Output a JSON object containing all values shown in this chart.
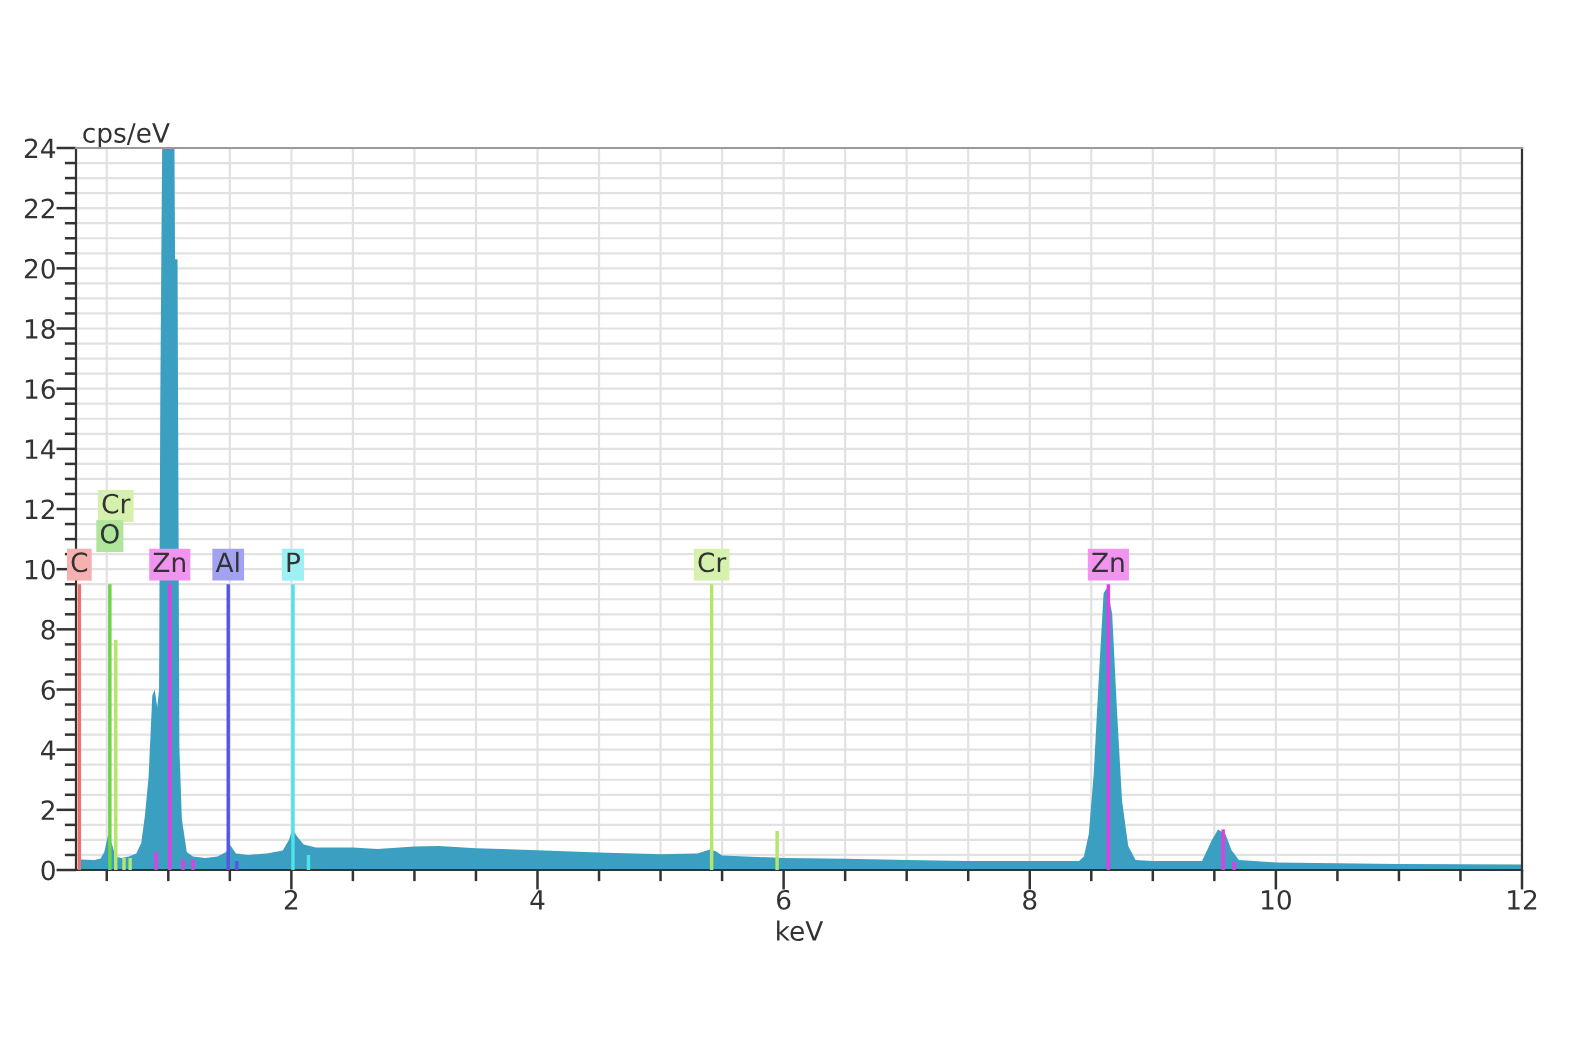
{
  "chart_data": {
    "type": "area",
    "xlabel": "keV",
    "ylabel": "cps/eV",
    "xlim": [
      0.25,
      12
    ],
    "ylim": [
      0,
      24
    ],
    "xticks": [
      {
        "value": 0.5,
        "label": null
      },
      {
        "value": 1,
        "label": null
      },
      {
        "value": 1.5,
        "label": null
      },
      2,
      {
        "value": 2.5,
        "label": null
      },
      {
        "value": 3,
        "label": null
      },
      {
        "value": 3.5,
        "label": null
      },
      4,
      {
        "value": 4.5,
        "label": null
      },
      {
        "value": 5,
        "label": null
      },
      {
        "value": 5.5,
        "label": null
      },
      6,
      {
        "value": 6.5,
        "label": null
      },
      {
        "value": 7,
        "label": null
      },
      {
        "value": 7.5,
        "label": null
      },
      8,
      {
        "value": 8.5,
        "label": null
      },
      {
        "value": 9,
        "label": null
      },
      {
        "value": 9.5,
        "label": null
      },
      10,
      {
        "value": 10.5,
        "label": null
      },
      {
        "value": 11,
        "label": null
      },
      {
        "value": 11.5,
        "label": null
      },
      12
    ],
    "yticks": [
      0,
      {
        "value": 0.5,
        "label": null
      },
      {
        "value": 1,
        "label": null
      },
      {
        "value": 1.5,
        "label": null
      },
      2,
      {
        "value": 2.5,
        "label": null
      },
      {
        "value": 3,
        "label": null
      },
      {
        "value": 3.5,
        "label": null
      },
      4,
      {
        "value": 4.5,
        "label": null
      },
      {
        "value": 5,
        "label": null
      },
      {
        "value": 5.5,
        "label": null
      },
      6,
      {
        "value": 6.5,
        "label": null
      },
      {
        "value": 7,
        "label": null
      },
      {
        "value": 7.5,
        "label": null
      },
      8,
      {
        "value": 8.5,
        "label": null
      },
      {
        "value": 9,
        "label": null
      },
      {
        "value": 9.5,
        "label": null
      },
      10,
      {
        "value": 10.5,
        "label": null
      },
      {
        "value": 11,
        "label": null
      },
      {
        "value": 11.5,
        "label": null
      },
      12,
      {
        "value": 12.5,
        "label": null
      },
      {
        "value": 13,
        "label": null
      },
      {
        "value": 13.5,
        "label": null
      },
      14,
      {
        "value": 14.5,
        "label": null
      },
      {
        "value": 15,
        "label": null
      },
      {
        "value": 15.5,
        "label": null
      },
      16,
      {
        "value": 16.5,
        "label": null
      },
      {
        "value": 17,
        "label": null
      },
      {
        "value": 17.5,
        "label": null
      },
      18,
      {
        "value": 18.5,
        "label": null
      },
      {
        "value": 19,
        "label": null
      },
      {
        "value": 19.5,
        "label": null
      },
      20,
      {
        "value": 20.5,
        "label": null
      },
      {
        "value": 21,
        "label": null
      },
      {
        "value": 21.5,
        "label": null
      },
      22,
      {
        "value": 22.5,
        "label": null
      },
      {
        "value": 23,
        "label": null
      },
      {
        "value": 23.5,
        "label": null
      },
      24
    ],
    "grid": true,
    "series": [
      {
        "color": "#3b9fc1",
        "x": [
          0.27,
          0.29,
          0.4,
          0.45,
          0.48,
          0.51,
          0.54,
          0.57,
          0.62,
          0.68,
          0.74,
          0.78,
          0.81,
          0.84,
          0.87,
          0.89,
          0.91,
          0.925,
          0.935,
          0.95,
          1.0,
          1.05,
          1.055,
          1.075,
          1.09,
          1.11,
          1.15,
          1.2,
          1.3,
          1.4,
          1.47,
          1.5,
          1.55,
          1.65,
          1.8,
          1.93,
          1.98,
          2.01,
          2.05,
          2.1,
          2.2,
          2.5,
          2.7,
          3.0,
          3.2,
          3.5,
          4.0,
          4.5,
          5.0,
          5.3,
          5.4,
          5.45,
          5.5,
          6.0,
          6.5,
          7.0,
          7.5,
          8.0,
          8.4,
          8.44,
          8.48,
          8.52,
          8.56,
          8.6,
          8.63,
          8.67,
          8.71,
          8.75,
          8.8,
          8.86,
          9.0,
          9.4,
          9.48,
          9.53,
          9.59,
          9.64,
          9.7,
          10.0,
          11.0,
          12.0
        ],
        "values": [
          0.78,
          0.35,
          0.33,
          0.38,
          0.6,
          1.15,
          0.9,
          0.45,
          0.4,
          0.45,
          0.55,
          0.9,
          1.8,
          3.1,
          5.8,
          6.0,
          5.4,
          6.0,
          15.7,
          24,
          24,
          24,
          20.3,
          20.3,
          4.1,
          1.7,
          0.6,
          0.45,
          0.4,
          0.45,
          0.6,
          0.85,
          0.55,
          0.5,
          0.55,
          0.65,
          1.0,
          1.35,
          1.1,
          0.85,
          0.75,
          0.75,
          0.7,
          0.78,
          0.8,
          0.72,
          0.66,
          0.58,
          0.52,
          0.55,
          0.68,
          0.62,
          0.48,
          0.4,
          0.37,
          0.33,
          0.3,
          0.3,
          0.3,
          0.45,
          1.2,
          3.2,
          6.3,
          9.2,
          9.4,
          8.5,
          5.2,
          2.3,
          0.8,
          0.33,
          0.3,
          0.3,
          1.0,
          1.35,
          1.2,
          0.66,
          0.33,
          0.25,
          0.2,
          0.18
        ]
      },
      {
        "type": "bar",
        "color": "#f07070",
        "x": [
          0.277
        ],
        "values": [
          9.5
        ]
      },
      {
        "type": "bar",
        "color": "#6fd24a",
        "x": [
          0.525
        ],
        "values": [
          9.5
        ]
      },
      {
        "type": "bar",
        "color": "#b5e56a",
        "x": [
          0.573,
          0.64,
          0.69,
          5.415,
          5.947
        ],
        "values": [
          7.65,
          0.4,
          0.4,
          9.5,
          1.3
        ]
      },
      {
        "type": "bar",
        "color": "#e33de3",
        "x": [
          0.9,
          1.012,
          1.12,
          1.2,
          8.639,
          9.572,
          9.66
        ],
        "values": [
          0.6,
          9.5,
          0.35,
          0.35,
          9.5,
          1.35,
          0.3
        ]
      },
      {
        "type": "bar",
        "color": "#5555e6",
        "x": [
          1.487,
          1.557
        ],
        "values": [
          9.5,
          0.3
        ]
      },
      {
        "type": "bar",
        "color": "#4fe3e8",
        "x": [
          2.013,
          2.139
        ],
        "values": [
          9.5,
          0.5
        ]
      }
    ],
    "annotations": [
      {
        "text": "C",
        "x": 0.277,
        "y": 10.15
      },
      {
        "text": "Cr",
        "x": 0.573,
        "y": 12.1
      },
      {
        "text": "O",
        "x": 0.525,
        "y": 11.1
      },
      {
        "text": "Zn",
        "x": 1.012,
        "y": 10.15
      },
      {
        "text": "Al",
        "x": 1.487,
        "y": 10.15
      },
      {
        "text": "P",
        "x": 2.013,
        "y": 10.15
      },
      {
        "text": "Cr",
        "x": 5.415,
        "y": 10.15
      },
      {
        "text": "Zn",
        "x": 8.639,
        "y": 10.15
      }
    ]
  }
}
